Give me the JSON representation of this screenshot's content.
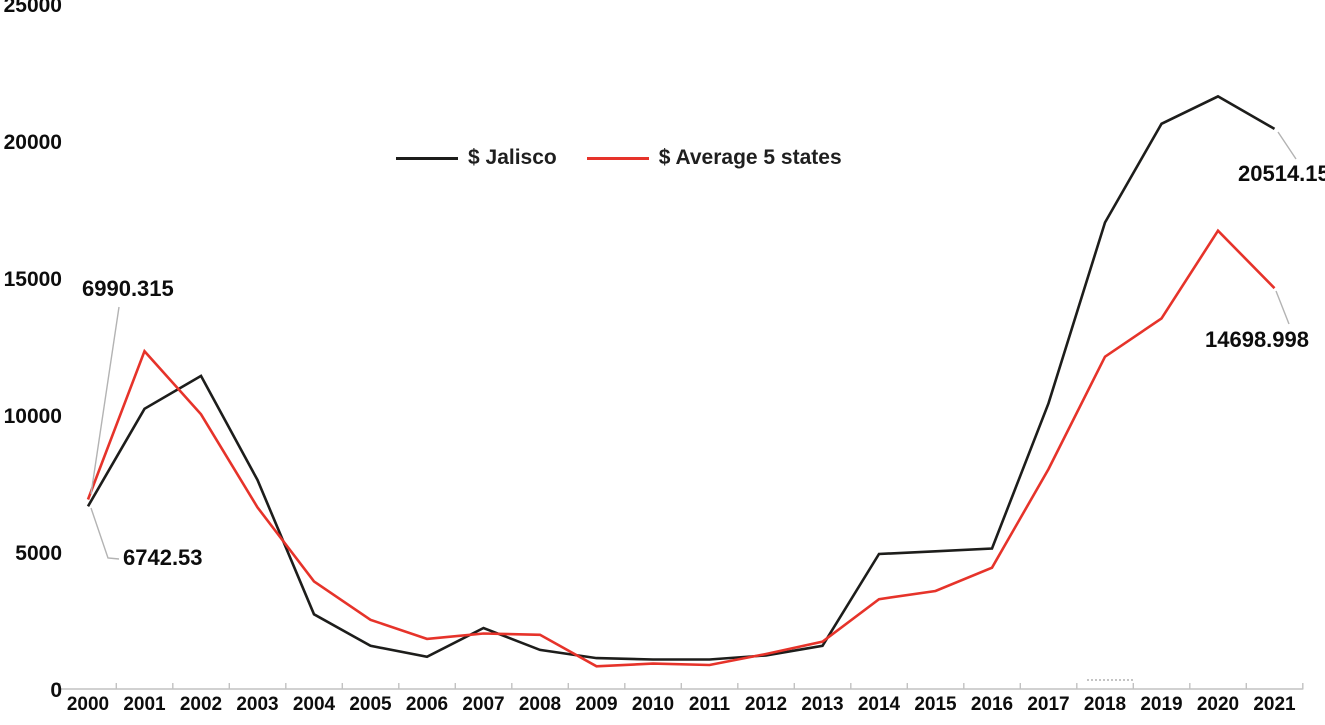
{
  "page": {
    "background": "#ffffff",
    "text_color": "#0d0d0d",
    "leader_line_color": "#b3b3b3",
    "axis_color": "#c2c2c2"
  },
  "legend": {
    "items": [
      {
        "label": "$ Jalisco",
        "color": "#1d1d1b"
      },
      {
        "label": "$ Average 5 states",
        "color": "#e6332a"
      }
    ]
  },
  "annotations": {
    "avg_start": "6990.315",
    "jalisco_start": "6742.53",
    "jalisco_end": "20514.15",
    "avg_end": "14698.998"
  },
  "chart_data": {
    "type": "line",
    "title": "",
    "xlabel": "",
    "ylabel": "",
    "categories": [
      "2000",
      "2001",
      "2002",
      "2003",
      "2004",
      "2005",
      "2006",
      "2007",
      "2008",
      "2009",
      "2010",
      "2011",
      "2012",
      "2013",
      "2014",
      "2015",
      "2016",
      "2017",
      "2018",
      "2019",
      "2020",
      "2021"
    ],
    "series": [
      {
        "name": "$ Jalisco",
        "color": "#1d1d1b",
        "values": [
          6742.53,
          10300,
          11500,
          7700,
          2800,
          1650,
          1250,
          2300,
          1500,
          1200,
          1150,
          1150,
          1300,
          1650,
          5000,
          5100,
          5200,
          10500,
          17100,
          20700,
          21700,
          20514.15
        ]
      },
      {
        "name": "$ Average 5 states",
        "color": "#e6332a",
        "values": [
          6990.315,
          12400,
          10100,
          6700,
          4000,
          2600,
          1900,
          2100,
          2050,
          900,
          1000,
          950,
          1350,
          1800,
          3350,
          3650,
          4500,
          8100,
          12200,
          13600,
          16800,
          14698.998
        ]
      }
    ],
    "ylim": [
      0,
      25000
    ],
    "y_ticks": [
      0,
      5000,
      10000,
      15000,
      20000,
      25000
    ],
    "grid": false,
    "legend_position": "top-center",
    "data_labels": [
      {
        "series": "$ Average 5 states",
        "category": "2000",
        "value": 6990.315
      },
      {
        "series": "$ Jalisco",
        "category": "2000",
        "value": 6742.53
      },
      {
        "series": "$ Jalisco",
        "category": "2021",
        "value": 20514.15
      },
      {
        "series": "$ Average 5 states",
        "category": "2021",
        "value": 14698.998
      }
    ]
  }
}
